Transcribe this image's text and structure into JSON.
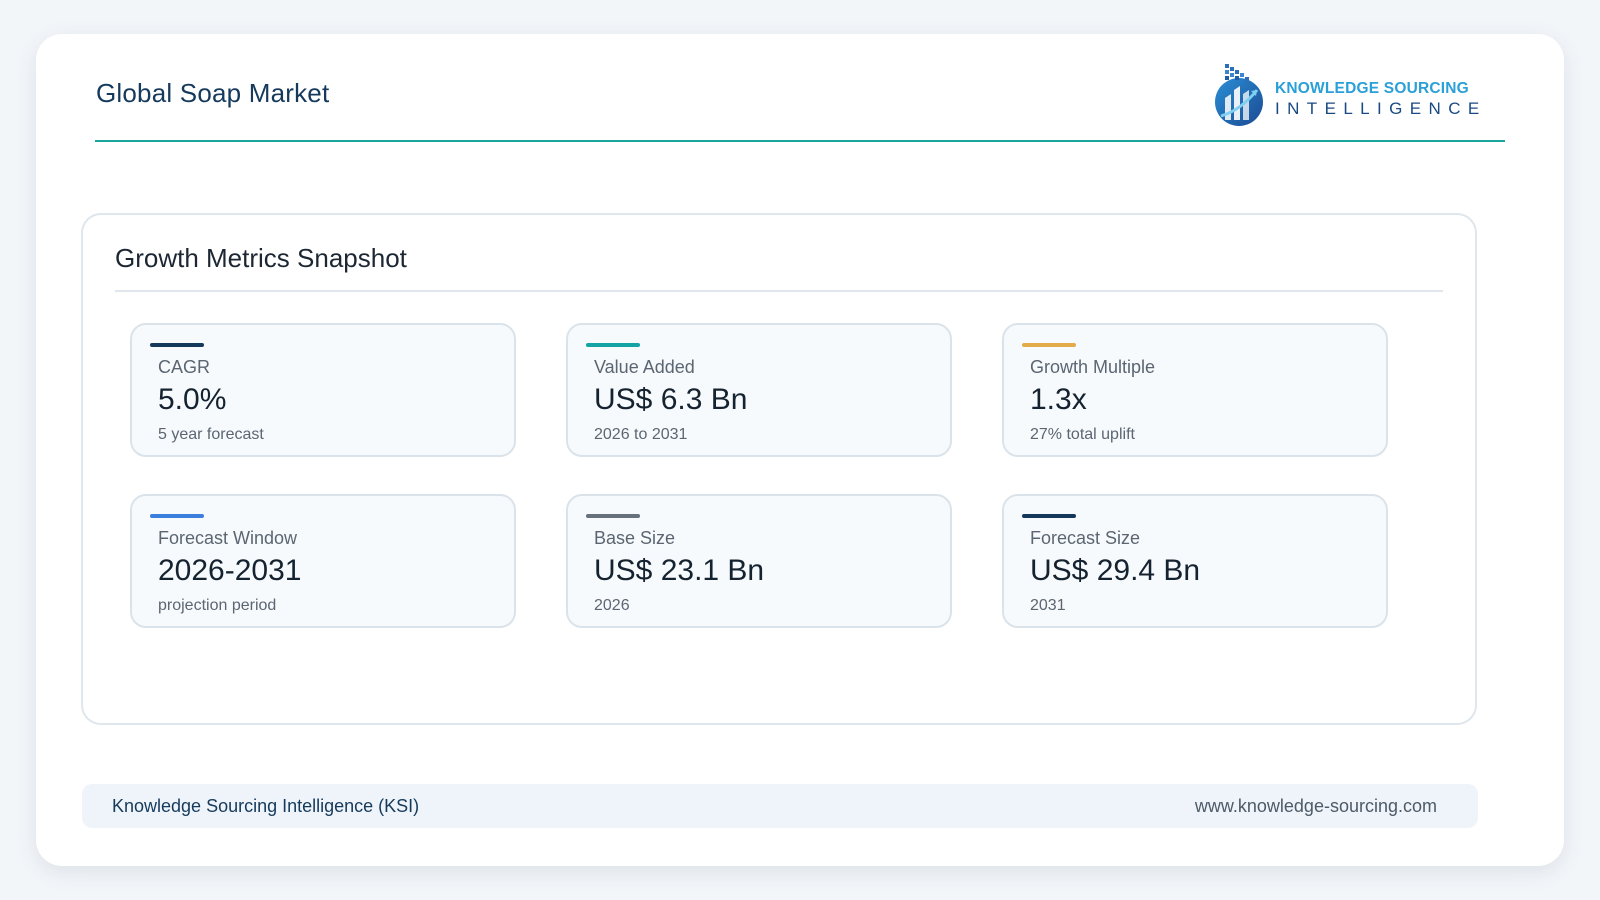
{
  "header": {
    "title": "Global Soap Market",
    "logo": {
      "line1": "KNOWLEDGE SOURCING",
      "line2": "INTELLIGENCE",
      "icon": "ksi-logo-icon"
    }
  },
  "panel": {
    "title": "Growth Metrics Snapshot",
    "cards": [
      {
        "label": "CAGR",
        "value": "5.0%",
        "sub": "5 year forecast",
        "accent": "#14385a"
      },
      {
        "label": "Value Added",
        "value": "US$ 6.3 Bn",
        "sub": "2026 to 2031",
        "accent": "#15a3a3"
      },
      {
        "label": "Growth Multiple",
        "value": "1.3x",
        "sub": "27% total uplift",
        "accent": "#e4a948"
      },
      {
        "label": "Forecast Window",
        "value": "2026-2031",
        "sub": "projection period",
        "accent": "#3a7fdc"
      },
      {
        "label": "Base Size",
        "value": "US$ 23.1 Bn",
        "sub": "2026",
        "accent": "#66717c"
      },
      {
        "label": "Forecast Size",
        "value": "US$ 29.4 Bn",
        "sub": "2031",
        "accent": "#14385a"
      }
    ]
  },
  "footer": {
    "left": "Knowledge Sourcing Intelligence (KSI)",
    "right": "www.knowledge-sourcing.com"
  }
}
